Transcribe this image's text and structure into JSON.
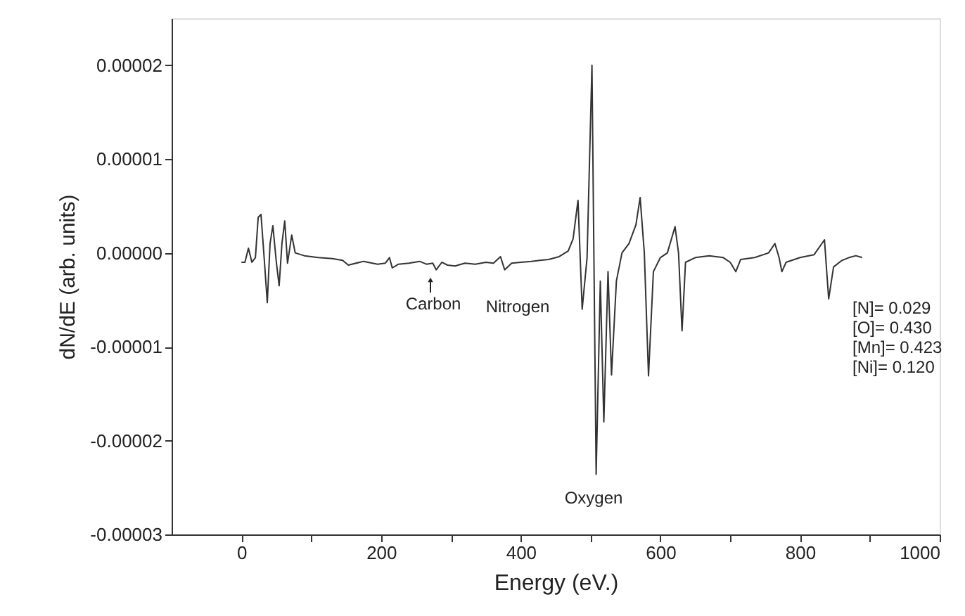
{
  "chart_data": {
    "type": "line",
    "xlabel": "Energy (eV.)",
    "ylabel": "dN/dE (arb. units)",
    "xlim": [
      -100,
      1000
    ],
    "xticks": [
      0,
      {
        "value": 100,
        "label": null
      },
      200,
      {
        "value": 300,
        "label": null
      },
      400,
      {
        "value": 500,
        "label": null
      },
      600,
      {
        "value": 700,
        "label": null
      },
      800,
      {
        "value": 900,
        "label": null
      },
      1000
    ],
    "ylim": [
      -3e-05,
      2.5e-05
    ],
    "yticks": [
      {
        "value": -3e-05,
        "label": "-0.00003"
      },
      {
        "value": -2e-05,
        "label": "-0.00002"
      },
      {
        "value": -1e-05,
        "label": "-0.00001"
      },
      {
        "value": 0,
        "label": "0.00000"
      },
      {
        "value": 1e-05,
        "label": "0.00001"
      },
      {
        "value": 2e-05,
        "label": "0.00002"
      }
    ],
    "grid": false,
    "marker": "none",
    "line_style": "solid",
    "x": [
      0,
      5,
      10,
      15,
      20,
      24,
      28,
      33,
      37,
      41,
      45,
      50,
      54,
      58,
      62,
      66,
      72,
      77,
      90,
      110,
      130,
      145,
      153,
      175,
      195,
      206,
      212,
      216,
      225,
      240,
      255,
      265,
      274,
      279,
      287,
      295,
      306,
      320,
      335,
      350,
      361,
      371,
      377,
      387,
      400,
      415,
      427,
      440,
      455,
      468,
      475,
      482,
      488,
      495,
      502,
      508,
      514,
      519,
      525,
      530,
      537,
      545,
      555,
      565,
      571,
      577,
      583,
      590,
      600,
      610,
      621,
      626,
      631,
      636,
      650,
      670,
      690,
      700,
      708,
      715,
      735,
      755,
      764,
      770,
      774,
      780,
      800,
      820,
      835,
      841,
      848,
      860,
      870,
      880,
      889
    ],
    "series": [
      {
        "color": "#333333",
        "values": [
          -1e-06,
          -1e-06,
          5e-07,
          -1e-06,
          -5e-07,
          3.8e-06,
          4.1e-06,
          -1e-06,
          -5.3e-06,
          1e-06,
          2.9e-06,
          -1e-06,
          -3.5e-06,
          1e-06,
          3.4e-06,
          -1.1e-06,
          1.9e-06,
          0,
          -3e-07,
          -5e-07,
          -6e-07,
          -8e-07,
          -1.3e-06,
          -9e-07,
          -1.2e-06,
          -1.1e-06,
          -5e-07,
          -1.6e-06,
          -1.2e-06,
          -1.1e-06,
          -9e-07,
          -1.2e-06,
          -1.1e-06,
          -1.8e-06,
          -1e-06,
          -1.3e-06,
          -1.4e-06,
          -1.1e-06,
          -1.2e-06,
          -1e-06,
          -1.1e-06,
          -4e-07,
          -1.8e-06,
          -1.1e-06,
          -1e-06,
          -9e-07,
          -8e-07,
          -7e-07,
          -4e-07,
          2e-07,
          1.5e-06,
          5.6e-06,
          -6e-06,
          -5e-07,
          2e-05,
          -2.36e-05,
          -3e-06,
          -1.8e-05,
          -2e-06,
          -1.3e-05,
          -3e-06,
          0,
          1e-06,
          3e-06,
          5.9e-06,
          0,
          -1.31e-05,
          -2e-06,
          -5e-07,
          0,
          2.8e-06,
          0,
          -8.3e-06,
          -1e-06,
          -5e-07,
          -3e-07,
          -5e-07,
          -1e-06,
          -2e-06,
          -7e-07,
          -5e-07,
          0,
          1e-06,
          -5e-07,
          -2e-06,
          -1e-06,
          -5e-07,
          -2e-07,
          1.4e-06,
          -4.9e-06,
          -1.5e-06,
          -8e-07,
          -5e-07,
          -3e-07,
          -5e-07
        ]
      }
    ],
    "annotations": [
      "Carbon",
      "Nitrogen",
      "Oxygen",
      "[N]= 0.029",
      "[O]= 0.430",
      "[Mn]= 0.423",
      "[Ni]= 0.120"
    ]
  }
}
